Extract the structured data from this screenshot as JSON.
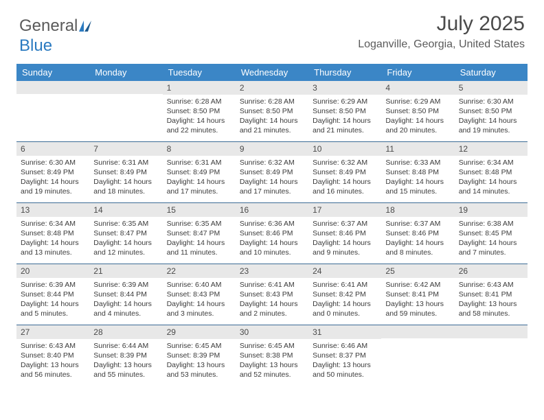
{
  "brand": {
    "name1": "General",
    "name2": "Blue"
  },
  "title": "July 2025",
  "location": "Loganville, Georgia, United States",
  "colors": {
    "header_bg": "#3b86c6",
    "header_text": "#ffffff",
    "week_border": "#3b6a95",
    "daynum_bg": "#e8e8e8",
    "text": "#3a3a3a",
    "brand_gray": "#5a5a5a",
    "brand_blue": "#2a7ac0"
  },
  "day_names": [
    "Sunday",
    "Monday",
    "Tuesday",
    "Wednesday",
    "Thursday",
    "Friday",
    "Saturday"
  ],
  "weeks": [
    [
      {
        "n": "",
        "sr": "",
        "ss": "",
        "d1": "",
        "d2": ""
      },
      {
        "n": "",
        "sr": "",
        "ss": "",
        "d1": "",
        "d2": ""
      },
      {
        "n": "1",
        "sr": "Sunrise: 6:28 AM",
        "ss": "Sunset: 8:50 PM",
        "d1": "Daylight: 14 hours",
        "d2": "and 22 minutes."
      },
      {
        "n": "2",
        "sr": "Sunrise: 6:28 AM",
        "ss": "Sunset: 8:50 PM",
        "d1": "Daylight: 14 hours",
        "d2": "and 21 minutes."
      },
      {
        "n": "3",
        "sr": "Sunrise: 6:29 AM",
        "ss": "Sunset: 8:50 PM",
        "d1": "Daylight: 14 hours",
        "d2": "and 21 minutes."
      },
      {
        "n": "4",
        "sr": "Sunrise: 6:29 AM",
        "ss": "Sunset: 8:50 PM",
        "d1": "Daylight: 14 hours",
        "d2": "and 20 minutes."
      },
      {
        "n": "5",
        "sr": "Sunrise: 6:30 AM",
        "ss": "Sunset: 8:50 PM",
        "d1": "Daylight: 14 hours",
        "d2": "and 19 minutes."
      }
    ],
    [
      {
        "n": "6",
        "sr": "Sunrise: 6:30 AM",
        "ss": "Sunset: 8:49 PM",
        "d1": "Daylight: 14 hours",
        "d2": "and 19 minutes."
      },
      {
        "n": "7",
        "sr": "Sunrise: 6:31 AM",
        "ss": "Sunset: 8:49 PM",
        "d1": "Daylight: 14 hours",
        "d2": "and 18 minutes."
      },
      {
        "n": "8",
        "sr": "Sunrise: 6:31 AM",
        "ss": "Sunset: 8:49 PM",
        "d1": "Daylight: 14 hours",
        "d2": "and 17 minutes."
      },
      {
        "n": "9",
        "sr": "Sunrise: 6:32 AM",
        "ss": "Sunset: 8:49 PM",
        "d1": "Daylight: 14 hours",
        "d2": "and 17 minutes."
      },
      {
        "n": "10",
        "sr": "Sunrise: 6:32 AM",
        "ss": "Sunset: 8:49 PM",
        "d1": "Daylight: 14 hours",
        "d2": "and 16 minutes."
      },
      {
        "n": "11",
        "sr": "Sunrise: 6:33 AM",
        "ss": "Sunset: 8:48 PM",
        "d1": "Daylight: 14 hours",
        "d2": "and 15 minutes."
      },
      {
        "n": "12",
        "sr": "Sunrise: 6:34 AM",
        "ss": "Sunset: 8:48 PM",
        "d1": "Daylight: 14 hours",
        "d2": "and 14 minutes."
      }
    ],
    [
      {
        "n": "13",
        "sr": "Sunrise: 6:34 AM",
        "ss": "Sunset: 8:48 PM",
        "d1": "Daylight: 14 hours",
        "d2": "and 13 minutes."
      },
      {
        "n": "14",
        "sr": "Sunrise: 6:35 AM",
        "ss": "Sunset: 8:47 PM",
        "d1": "Daylight: 14 hours",
        "d2": "and 12 minutes."
      },
      {
        "n": "15",
        "sr": "Sunrise: 6:35 AM",
        "ss": "Sunset: 8:47 PM",
        "d1": "Daylight: 14 hours",
        "d2": "and 11 minutes."
      },
      {
        "n": "16",
        "sr": "Sunrise: 6:36 AM",
        "ss": "Sunset: 8:46 PM",
        "d1": "Daylight: 14 hours",
        "d2": "and 10 minutes."
      },
      {
        "n": "17",
        "sr": "Sunrise: 6:37 AM",
        "ss": "Sunset: 8:46 PM",
        "d1": "Daylight: 14 hours",
        "d2": "and 9 minutes."
      },
      {
        "n": "18",
        "sr": "Sunrise: 6:37 AM",
        "ss": "Sunset: 8:46 PM",
        "d1": "Daylight: 14 hours",
        "d2": "and 8 minutes."
      },
      {
        "n": "19",
        "sr": "Sunrise: 6:38 AM",
        "ss": "Sunset: 8:45 PM",
        "d1": "Daylight: 14 hours",
        "d2": "and 7 minutes."
      }
    ],
    [
      {
        "n": "20",
        "sr": "Sunrise: 6:39 AM",
        "ss": "Sunset: 8:44 PM",
        "d1": "Daylight: 14 hours",
        "d2": "and 5 minutes."
      },
      {
        "n": "21",
        "sr": "Sunrise: 6:39 AM",
        "ss": "Sunset: 8:44 PM",
        "d1": "Daylight: 14 hours",
        "d2": "and 4 minutes."
      },
      {
        "n": "22",
        "sr": "Sunrise: 6:40 AM",
        "ss": "Sunset: 8:43 PM",
        "d1": "Daylight: 14 hours",
        "d2": "and 3 minutes."
      },
      {
        "n": "23",
        "sr": "Sunrise: 6:41 AM",
        "ss": "Sunset: 8:43 PM",
        "d1": "Daylight: 14 hours",
        "d2": "and 2 minutes."
      },
      {
        "n": "24",
        "sr": "Sunrise: 6:41 AM",
        "ss": "Sunset: 8:42 PM",
        "d1": "Daylight: 14 hours",
        "d2": "and 0 minutes."
      },
      {
        "n": "25",
        "sr": "Sunrise: 6:42 AM",
        "ss": "Sunset: 8:41 PM",
        "d1": "Daylight: 13 hours",
        "d2": "and 59 minutes."
      },
      {
        "n": "26",
        "sr": "Sunrise: 6:43 AM",
        "ss": "Sunset: 8:41 PM",
        "d1": "Daylight: 13 hours",
        "d2": "and 58 minutes."
      }
    ],
    [
      {
        "n": "27",
        "sr": "Sunrise: 6:43 AM",
        "ss": "Sunset: 8:40 PM",
        "d1": "Daylight: 13 hours",
        "d2": "and 56 minutes."
      },
      {
        "n": "28",
        "sr": "Sunrise: 6:44 AM",
        "ss": "Sunset: 8:39 PM",
        "d1": "Daylight: 13 hours",
        "d2": "and 55 minutes."
      },
      {
        "n": "29",
        "sr": "Sunrise: 6:45 AM",
        "ss": "Sunset: 8:39 PM",
        "d1": "Daylight: 13 hours",
        "d2": "and 53 minutes."
      },
      {
        "n": "30",
        "sr": "Sunrise: 6:45 AM",
        "ss": "Sunset: 8:38 PM",
        "d1": "Daylight: 13 hours",
        "d2": "and 52 minutes."
      },
      {
        "n": "31",
        "sr": "Sunrise: 6:46 AM",
        "ss": "Sunset: 8:37 PM",
        "d1": "Daylight: 13 hours",
        "d2": "and 50 minutes."
      },
      {
        "n": "",
        "sr": "",
        "ss": "",
        "d1": "",
        "d2": ""
      },
      {
        "n": "",
        "sr": "",
        "ss": "",
        "d1": "",
        "d2": ""
      }
    ]
  ]
}
